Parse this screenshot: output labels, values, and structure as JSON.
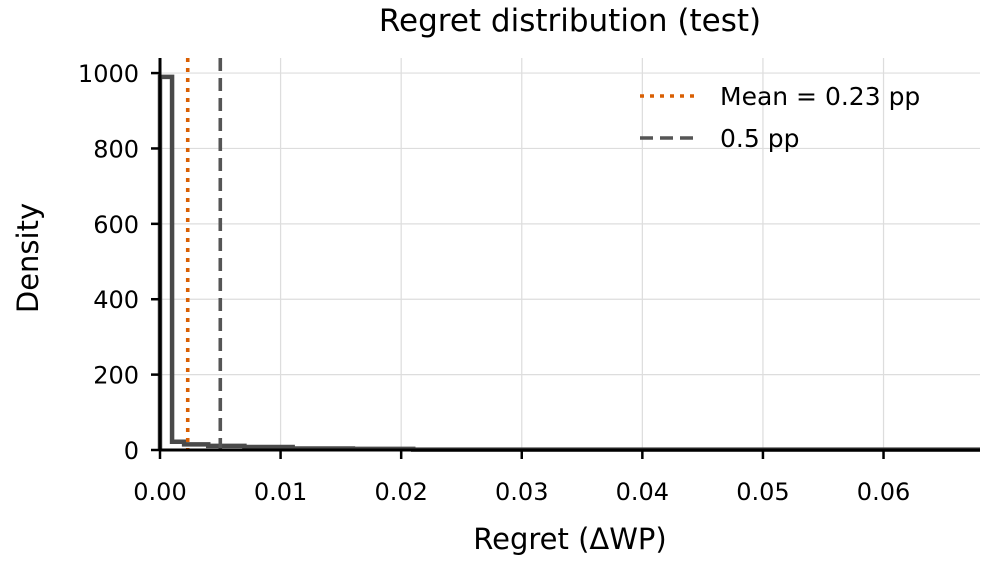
{
  "chart_data": {
    "type": "histogram",
    "title": "Regret distribution (test)",
    "xlabel": "Regret (ΔWP)",
    "ylabel": "Density",
    "xlim": [
      0.0,
      0.068
    ],
    "ylim": [
      0,
      1040
    ],
    "xticks": [
      0.0,
      0.01,
      0.02,
      0.03,
      0.04,
      0.05,
      0.06
    ],
    "xtick_labels": [
      "0.00",
      "0.01",
      "0.02",
      "0.03",
      "0.04",
      "0.05",
      "0.06"
    ],
    "yticks": [
      0,
      200,
      400,
      600,
      800,
      1000
    ],
    "ytick_labels": [
      "0",
      "200",
      "400",
      "600",
      "800",
      "1000"
    ],
    "grid": true,
    "legend_position": "top-right",
    "histogram": {
      "bins": [
        [
          0.0,
          0.001,
          990
        ],
        [
          0.001,
          0.002,
          22
        ],
        [
          0.002,
          0.004,
          15
        ],
        [
          0.004,
          0.007,
          11
        ],
        [
          0.007,
          0.011,
          8
        ],
        [
          0.011,
          0.016,
          4
        ],
        [
          0.016,
          0.021,
          3
        ],
        [
          0.021,
          0.068,
          1
        ]
      ],
      "color": "#4a4a4a"
    },
    "reference_lines": [
      {
        "name": "Mean = 0.23 pp",
        "x": 0.0023,
        "style": "dotted",
        "color": "#d95f02"
      },
      {
        "name": "0.5 pp",
        "x": 0.005,
        "style": "dashed",
        "color": "#555555"
      }
    ]
  }
}
